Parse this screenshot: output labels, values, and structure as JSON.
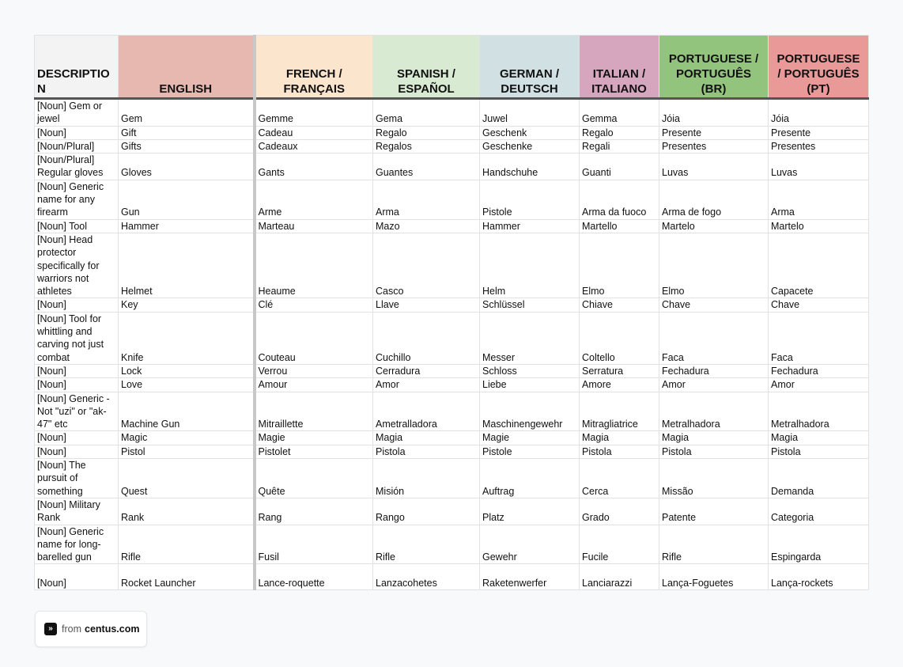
{
  "table": {
    "headers": [
      "DESCRIPTION",
      "ENGLISH",
      "FRENCH / FRANÇAIS",
      "SPANISH / ESPAÑOL",
      "GERMAN / DEUTSCH",
      "ITALIAN / ITALIANO",
      "PORTUGUESE / PORTUGUÊS (BR)",
      "PORTUGUESE / PORTUGUÊS (PT)"
    ],
    "rows": [
      [
        "[Noun] Gem or jewel",
        "Gem",
        "Gemme",
        "Gema",
        "Juwel",
        "Gemma",
        "Jóia",
        "Jóia"
      ],
      [
        "[Noun]",
        "Gift",
        "Cadeau",
        "Regalo",
        "Geschenk",
        "Regalo",
        "Presente",
        "Presente"
      ],
      [
        "[Noun/Plural]",
        "Gifts",
        "Cadeaux",
        "Regalos",
        "Geschenke",
        "Regali",
        "Presentes",
        "Presentes"
      ],
      [
        "[Noun/Plural] Regular gloves",
        "Gloves",
        "Gants",
        "Guantes",
        "Handschuhe",
        "Guanti",
        "Luvas",
        "Luvas"
      ],
      [
        "[Noun] Generic name for any firearm",
        "Gun",
        "Arme",
        "Arma",
        "Pistole",
        "Arma da fuoco",
        "Arma de fogo",
        "Arma"
      ],
      [
        "[Noun] Tool",
        "Hammer",
        "Marteau",
        "Mazo",
        "Hammer",
        "Martello",
        "Martelo",
        "Martelo"
      ],
      [
        "[Noun] Head protector specifically for warriors not athletes",
        "Helmet",
        "Heaume",
        "Casco",
        "Helm",
        "Elmo",
        "Elmo",
        "Capacete"
      ],
      [
        "[Noun]",
        "Key",
        "Clé",
        "Llave",
        "Schlüssel",
        "Chiave",
        "Chave",
        "Chave"
      ],
      [
        "[Noun] Tool for whittling and carving not just combat",
        "Knife",
        "Couteau",
        "Cuchillo",
        "Messer",
        "Coltello",
        "Faca",
        "Faca"
      ],
      [
        "[Noun]",
        "Lock",
        "Verrou",
        "Cerradura",
        "Schloss",
        "Serratura",
        "Fechadura",
        "Fechadura"
      ],
      [
        "[Noun]",
        "Love",
        "Amour",
        "Amor",
        "Liebe",
        "Amore",
        "Amor",
        "Amor"
      ],
      [
        "[Noun] Generic - Not \"uzi\" or \"ak-47\" etc",
        "Machine Gun",
        "Mitraillette",
        "Ametralladora",
        "Maschinengewehr",
        "Mitragliatrice",
        "Metralhadora",
        "Metralhadora"
      ],
      [
        "[Noun]",
        "Magic",
        "Magie",
        "Magia",
        "Magie",
        "Magia",
        "Magia",
        "Magia"
      ],
      [
        "[Noun]",
        "Pistol",
        "Pistolet",
        "Pistola",
        "Pistole",
        "Pistola",
        "Pistola",
        "Pistola"
      ],
      [
        "[Noun] The pursuit of something",
        "Quest",
        "Quête",
        "Misión",
        "Auftrag",
        "Cerca",
        "Missão",
        "Demanda"
      ],
      [
        "[Noun] Military Rank",
        "Rank",
        "Rang",
        "Rango",
        "Platz",
        "Grado",
        "Patente",
        "Categoria"
      ],
      [
        "[Noun] Generic name for long-barelled gun",
        "Rifle",
        "Fusil",
        "Rifle",
        "Gewehr",
        "Fucile",
        "Rifle",
        "Espingarda"
      ],
      [
        "[Noun]",
        "Rocket Launcher",
        "Lance-roquette",
        "Lanzacohetes",
        "Raketenwerfer",
        "Lanciarazzi",
        "Lança-Foguetes",
        "Lança-rockets"
      ]
    ]
  },
  "footer": {
    "prefix": "from",
    "brand": "centus.com"
  }
}
